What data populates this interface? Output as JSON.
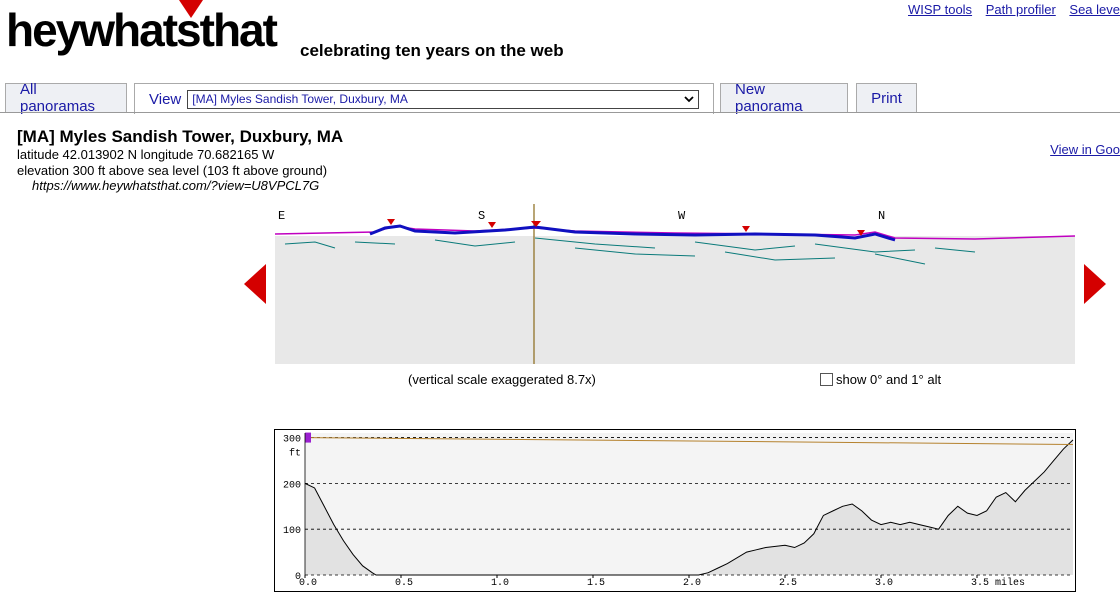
{
  "brand": {
    "logo": "heywhatsthat",
    "tagline": "celebrating ten years on the web",
    "accent": "#d40000"
  },
  "toplinks": [
    "WISP tools",
    "Path profiler",
    "Sea leve"
  ],
  "tabs": {
    "all": "All panoramas",
    "view": "View",
    "new": "New panorama",
    "print": "Print"
  },
  "view_select": {
    "selected": "[MA] Myles Sandish Tower, Duxbury, MA"
  },
  "site": {
    "title": "[MA] Myles Sandish Tower, Duxbury, MA",
    "coords": "latitude 42.013902 N longitude 70.682165 W",
    "elevation": "elevation 300 ft above sea level (103 ft above ground)",
    "url": "https://www.heywhatsthat.com/?view=U8VPCL7G"
  },
  "view_in": "View in Goo",
  "panorama": {
    "compass": [
      "E",
      "S",
      "W",
      "N"
    ],
    "vertical_scale": "(vertical scale exaggerated 8.7x)",
    "alt_label": "show 0° and 1° alt"
  },
  "chart_data": {
    "type": "area",
    "title": "",
    "xlabel": "miles",
    "ylabel": "ft",
    "xlim": [
      0,
      4.0
    ],
    "ylim": [
      0,
      310
    ],
    "x_ticks": [
      "0.0",
      "0.5",
      "1.0",
      "1.5",
      "2.0",
      "2.5",
      "3.0",
      "3.5 miles"
    ],
    "y_ticks": [
      "0",
      "100",
      "200",
      "300"
    ],
    "y_unit": "ft",
    "series": [
      {
        "values_x": [
          0,
          0.05,
          0.1,
          0.15,
          0.2,
          0.25,
          0.3,
          0.35,
          0.37,
          0.4,
          1.0,
          1.5,
          2.0,
          2.05,
          2.1,
          2.15,
          2.2,
          2.3,
          2.35,
          2.4,
          2.5,
          2.55,
          2.6,
          2.65,
          2.7,
          2.75,
          2.8,
          2.85,
          2.9,
          2.95,
          3.0,
          3.05,
          3.1,
          3.15,
          3.2,
          3.25,
          3.3,
          3.35,
          3.4,
          3.45,
          3.5,
          3.55,
          3.6,
          3.65,
          3.7,
          3.75,
          3.8,
          3.85,
          3.9,
          3.95,
          4.0
        ],
        "values_y": [
          200,
          190,
          150,
          110,
          75,
          45,
          20,
          5,
          0,
          0,
          0,
          0,
          0,
          0,
          5,
          15,
          25,
          50,
          55,
          60,
          65,
          60,
          70,
          90,
          130,
          140,
          150,
          155,
          140,
          120,
          110,
          115,
          110,
          115,
          110,
          105,
          100,
          130,
          150,
          135,
          130,
          140,
          170,
          180,
          160,
          185,
          205,
          225,
          250,
          275,
          295
        ]
      },
      {
        "values_x": [
          0,
          4.0
        ],
        "values_y": [
          300,
          285
        ]
      }
    ]
  }
}
